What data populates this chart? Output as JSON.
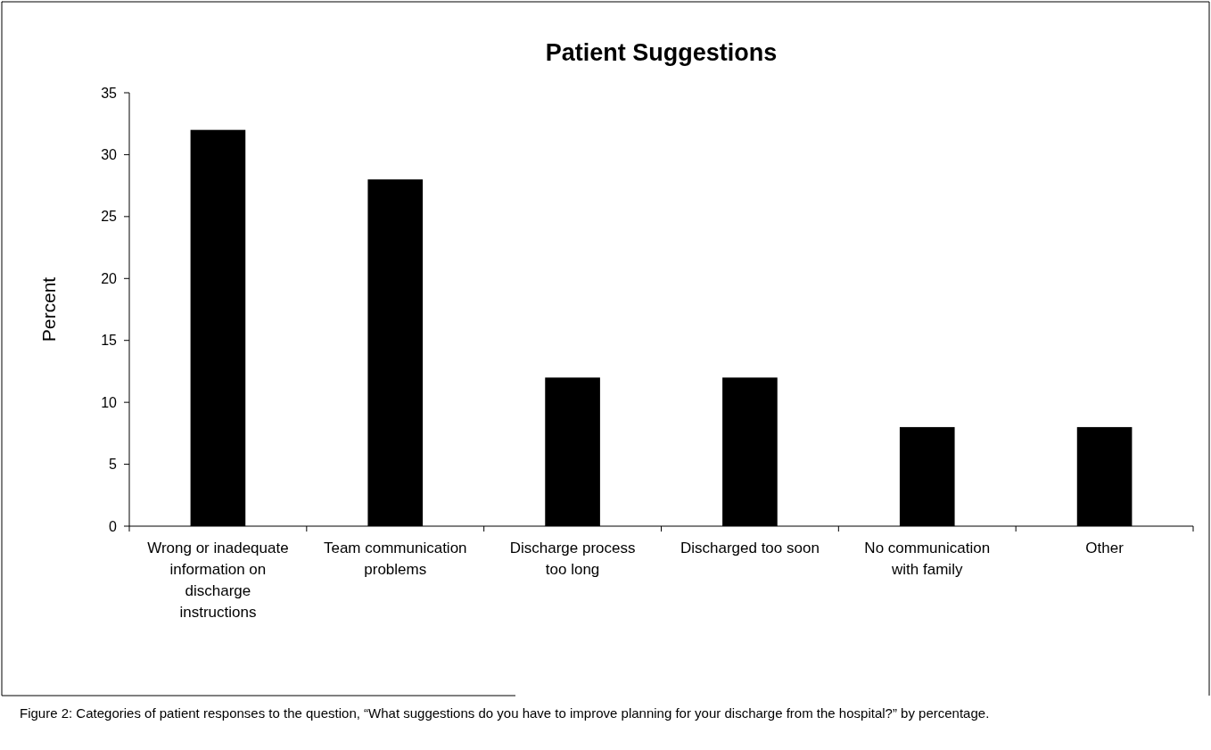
{
  "chart_data": {
    "type": "bar",
    "title": "Patient Suggestions",
    "ylabel": "Percent",
    "categories": [
      "Wrong or inadequate information on discharge instructions",
      "Team communication problems",
      "Discharge process too long",
      "Discharged too soon",
      "No communication with family",
      "Other"
    ],
    "values": [
      32,
      28,
      12,
      12,
      8,
      8
    ],
    "color": "#000000",
    "ylim": [
      0,
      35
    ],
    "yticks": [
      0,
      5,
      10,
      15,
      20,
      25,
      30,
      35
    ],
    "grid": false,
    "annotations": [
      "Figure 2: Categories of patient responses to the question, “What suggestions do you have to improve planning for your discharge from the hospital?” by percentage."
    ]
  }
}
